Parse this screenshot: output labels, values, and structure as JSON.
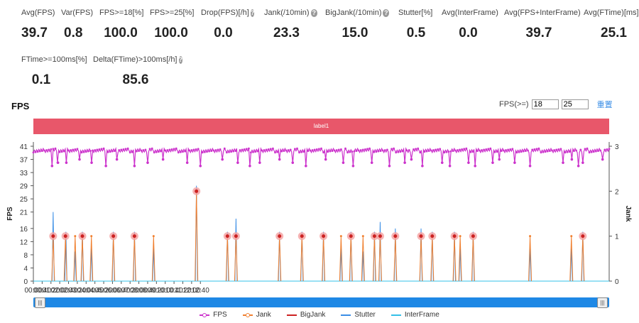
{
  "metrics": [
    {
      "label": "Avg(FPS)",
      "value": "39.7",
      "help": false
    },
    {
      "label": "Var(FPS)",
      "value": "0.8",
      "help": false
    },
    {
      "label": "FPS>=18[%]",
      "value": "100.0",
      "help": false
    },
    {
      "label": "FPS>=25[%]",
      "value": "100.0",
      "help": false
    },
    {
      "label": "Drop(FPS)[/h]",
      "value": "0.0",
      "help": true
    },
    {
      "label": "Jank(/10min)",
      "value": "23.3",
      "help": true
    },
    {
      "label": "BigJank(/10min)",
      "value": "15.0",
      "help": true
    },
    {
      "label": "Stutter[%]",
      "value": "0.5",
      "help": false
    },
    {
      "label": "Avg(InterFrame)",
      "value": "0.0",
      "help": false
    },
    {
      "label": "Avg(FPS+InterFrame)",
      "value": "39.7",
      "help": false
    },
    {
      "label": "Avg(FTime)[ms]",
      "value": "25.1",
      "help": false
    },
    {
      "label": "FTime>=100ms[%]",
      "value": "0.1",
      "help": false
    },
    {
      "label": "Delta(FTime)>100ms[/h]",
      "value": "85.6",
      "help": true
    }
  ],
  "chart_title": "FPS",
  "fps_filter": {
    "label": "FPS(>=)",
    "value1": "18",
    "value2": "25",
    "reset_label": "重置"
  },
  "label_band": "label1",
  "icons": {
    "help": "question-circle-icon",
    "slider_handle": "drag-handle-icon"
  },
  "colors": {
    "fps": "#cc33cc",
    "jank": "#f08030",
    "bigjank": "#cc2222",
    "stutter": "#3a8ee6",
    "interframe": "#35c0e8",
    "label_band": "#e8576a",
    "slider": "#1e88e5"
  },
  "chart_data": {
    "type": "line",
    "title": "FPS",
    "ylabel": "FPS",
    "y2label": "Jank",
    "ylim": [
      0,
      41
    ],
    "y2lim": [
      0,
      3
    ],
    "yticks": [
      0,
      4,
      8,
      12,
      16,
      21,
      25,
      29,
      33,
      37,
      41
    ],
    "y2ticks": [
      0,
      1,
      2,
      3
    ],
    "xlim_sec": [
      0,
      2620
    ],
    "xticks": [
      "00:00",
      "00:40",
      "01:20",
      "02:00",
      "02:40",
      "03:20",
      "04:00",
      "04:40",
      "05:20",
      "06:00",
      "06:40",
      "07:20",
      "08:00",
      "08:40",
      "09:20",
      "10:00",
      "10:40",
      "11:20",
      "12:00",
      "12:40"
    ],
    "x_tick_interval_sec": 40,
    "fps_baseline": 39.7,
    "fps_dips": [
      {
        "t": 85,
        "v": 35
      },
      {
        "t": 112,
        "v": 36
      },
      {
        "t": 150,
        "v": 36
      },
      {
        "t": 210,
        "v": 37
      },
      {
        "t": 265,
        "v": 36
      },
      {
        "t": 330,
        "v": 35
      },
      {
        "t": 380,
        "v": 37
      },
      {
        "t": 460,
        "v": 35
      },
      {
        "t": 520,
        "v": 36
      },
      {
        "t": 590,
        "v": 37
      },
      {
        "t": 700,
        "v": 36
      },
      {
        "t": 760,
        "v": 35
      },
      {
        "t": 860,
        "v": 37
      },
      {
        "t": 930,
        "v": 36
      },
      {
        "t": 985,
        "v": 35
      },
      {
        "t": 1030,
        "v": 36
      },
      {
        "t": 1120,
        "v": 37
      },
      {
        "t": 1180,
        "v": 36
      },
      {
        "t": 1240,
        "v": 35
      },
      {
        "t": 1330,
        "v": 37
      },
      {
        "t": 1410,
        "v": 36
      },
      {
        "t": 1455,
        "v": 35
      },
      {
        "t": 1540,
        "v": 36
      },
      {
        "t": 1620,
        "v": 35
      },
      {
        "t": 1690,
        "v": 36
      },
      {
        "t": 1720,
        "v": 37
      },
      {
        "t": 1770,
        "v": 35
      },
      {
        "t": 1860,
        "v": 36
      },
      {
        "t": 1895,
        "v": 35
      },
      {
        "t": 1980,
        "v": 36
      },
      {
        "t": 2010,
        "v": 35
      },
      {
        "t": 2090,
        "v": 36
      },
      {
        "t": 2120,
        "v": 37
      },
      {
        "t": 2190,
        "v": 36
      },
      {
        "t": 2260,
        "v": 35
      },
      {
        "t": 2410,
        "v": 36
      },
      {
        "t": 2450,
        "v": 37
      },
      {
        "t": 2480,
        "v": 35
      },
      {
        "t": 2500,
        "v": 36
      },
      {
        "t": 2590,
        "v": 37
      }
    ],
    "jank_events": [
      {
        "t": 90,
        "v": 1,
        "big": true
      },
      {
        "t": 146,
        "v": 1,
        "big": true
      },
      {
        "t": 190,
        "v": 1,
        "big": false
      },
      {
        "t": 223,
        "v": 1,
        "big": true
      },
      {
        "t": 264,
        "v": 1,
        "big": false
      },
      {
        "t": 364,
        "v": 1,
        "big": true
      },
      {
        "t": 460,
        "v": 1,
        "big": true
      },
      {
        "t": 547,
        "v": 1,
        "big": false
      },
      {
        "t": 742,
        "v": 2,
        "big": true
      },
      {
        "t": 883,
        "v": 1,
        "big": true
      },
      {
        "t": 922,
        "v": 1,
        "big": true
      },
      {
        "t": 1120,
        "v": 1,
        "big": true
      },
      {
        "t": 1222,
        "v": 1,
        "big": true
      },
      {
        "t": 1320,
        "v": 1,
        "big": true
      },
      {
        "t": 1400,
        "v": 1,
        "big": false
      },
      {
        "t": 1445,
        "v": 1,
        "big": true
      },
      {
        "t": 1500,
        "v": 1,
        "big": false
      },
      {
        "t": 1552,
        "v": 1,
        "big": true
      },
      {
        "t": 1578,
        "v": 1,
        "big": true
      },
      {
        "t": 1647,
        "v": 1,
        "big": true
      },
      {
        "t": 1764,
        "v": 1,
        "big": true
      },
      {
        "t": 1815,
        "v": 1,
        "big": true
      },
      {
        "t": 1916,
        "v": 1,
        "big": true
      },
      {
        "t": 1942,
        "v": 1,
        "big": false
      },
      {
        "t": 2001,
        "v": 1,
        "big": true
      },
      {
        "t": 2260,
        "v": 1,
        "big": false
      },
      {
        "t": 2448,
        "v": 1,
        "big": false
      },
      {
        "t": 2500,
        "v": 1,
        "big": true
      }
    ],
    "stutter_events": [
      {
        "t": 90,
        "v": 21
      },
      {
        "t": 148,
        "v": 15
      },
      {
        "t": 190,
        "v": 9
      },
      {
        "t": 223,
        "v": 15
      },
      {
        "t": 264,
        "v": 10
      },
      {
        "t": 364,
        "v": 15
      },
      {
        "t": 460,
        "v": 15
      },
      {
        "t": 547,
        "v": 10
      },
      {
        "t": 742,
        "v": 29
      },
      {
        "t": 883,
        "v": 15
      },
      {
        "t": 922,
        "v": 19
      },
      {
        "t": 1120,
        "v": 15
      },
      {
        "t": 1222,
        "v": 15
      },
      {
        "t": 1320,
        "v": 15
      },
      {
        "t": 1400,
        "v": 10
      },
      {
        "t": 1445,
        "v": 15
      },
      {
        "t": 1500,
        "v": 9
      },
      {
        "t": 1552,
        "v": 15
      },
      {
        "t": 1578,
        "v": 18
      },
      {
        "t": 1647,
        "v": 16
      },
      {
        "t": 1764,
        "v": 16
      },
      {
        "t": 1815,
        "v": 15
      },
      {
        "t": 1916,
        "v": 15
      },
      {
        "t": 1942,
        "v": 10
      },
      {
        "t": 2001,
        "v": 15
      },
      {
        "t": 2260,
        "v": 10
      },
      {
        "t": 2448,
        "v": 10
      },
      {
        "t": 2500,
        "v": 15
      }
    ],
    "interframe_values": [
      0
    ],
    "legend": [
      "FPS",
      "Jank",
      "BigJank",
      "Stutter",
      "InterFrame"
    ],
    "legend_position": "bottom-center",
    "grid": false
  }
}
